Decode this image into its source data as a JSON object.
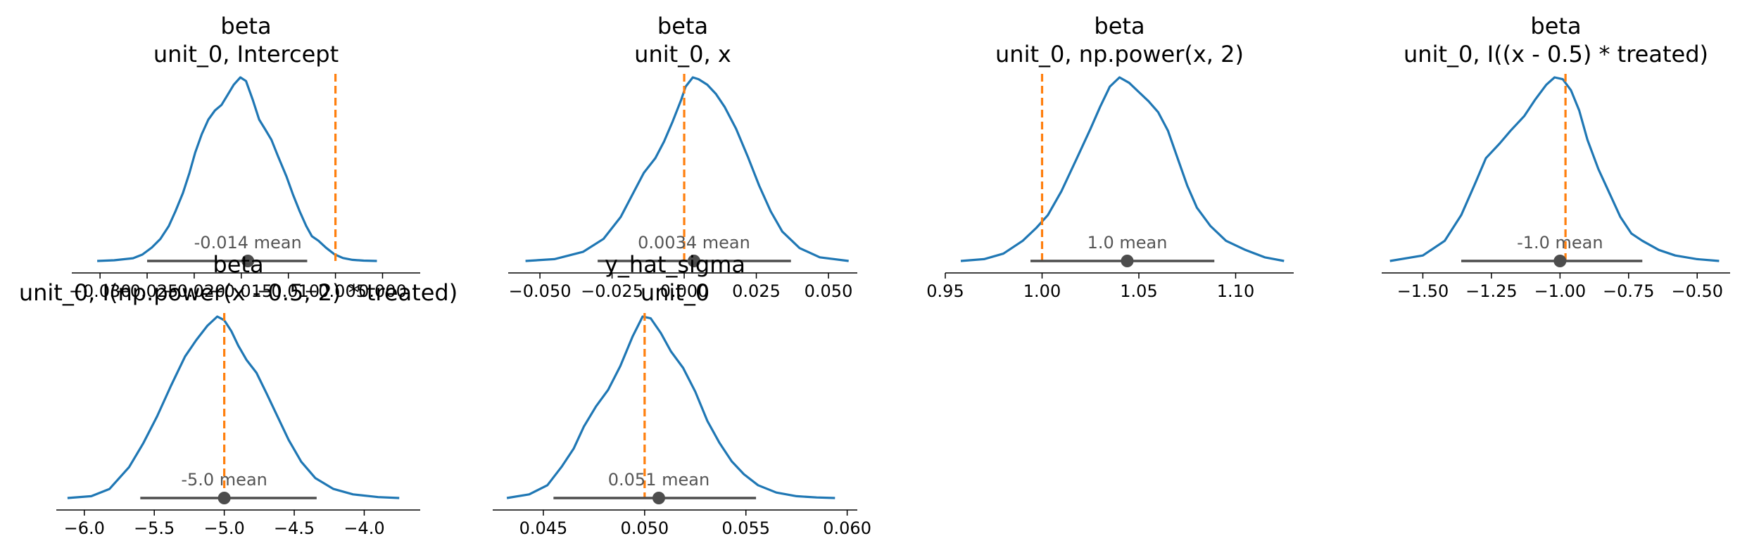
{
  "colors": {
    "density": "#1f77b4",
    "reference": "#ff7f0e",
    "hdi": "#4d4d4d",
    "mean_text": "#555555"
  },
  "chart_data": [
    {
      "type": "density",
      "title": [
        "beta",
        "unit_0, Intercept"
      ],
      "xlim": [
        -0.033,
        0.004
      ],
      "ticks": [
        -0.03,
        -0.025,
        -0.02,
        -0.015,
        -0.01,
        -0.005,
        0.0
      ],
      "tick_labels": [
        "−0.030",
        "−0.025",
        "−0.020",
        "−0.015",
        "−0.010",
        "−0.005",
        "0.000"
      ],
      "mean": -0.0143,
      "mean_label": "-0.014 mean",
      "hdi": [
        -0.025,
        -0.008
      ],
      "ref": -0.005,
      "density": {
        "x": [
          -0.0303,
          -0.0285,
          -0.0265,
          -0.0255,
          -0.0245,
          -0.0236,
          -0.0227,
          -0.022,
          -0.0212,
          -0.0205,
          -0.0199,
          -0.0192,
          -0.0185,
          -0.0178,
          -0.0171,
          -0.0165,
          -0.0158,
          -0.0151,
          -0.0145,
          -0.0138,
          -0.0131,
          -0.0125,
          -0.0118,
          -0.0111,
          -0.0102,
          -0.0095,
          -0.0088,
          -0.0081,
          -0.0075,
          -0.0068,
          -0.006,
          -0.0051,
          -0.0042,
          -0.0032,
          -0.002,
          -0.0006
        ],
        "y": [
          0.0,
          0.004,
          0.015,
          0.035,
          0.073,
          0.12,
          0.19,
          0.27,
          0.37,
          0.48,
          0.59,
          0.69,
          0.77,
          0.82,
          0.85,
          0.9,
          0.96,
          1.0,
          0.98,
          0.88,
          0.77,
          0.72,
          0.66,
          0.57,
          0.46,
          0.36,
          0.27,
          0.19,
          0.135,
          0.11,
          0.072,
          0.036,
          0.016,
          0.006,
          0.002,
          0.0
        ]
      }
    },
    {
      "type": "density",
      "title": [
        "beta",
        "unit_0, x"
      ],
      "xlim": [
        -0.061,
        0.06
      ],
      "ticks": [
        -0.05,
        -0.025,
        0.0,
        0.025,
        0.05
      ],
      "tick_labels": [
        "−0.050",
        "−0.025",
        "0.000",
        "0.025",
        "0.050"
      ],
      "mean": 0.0034,
      "mean_label": "0.0034 mean",
      "hdi": [
        -0.03,
        0.037
      ],
      "ref": 0.0,
      "density": {
        "x": [
          -0.055,
          -0.045,
          -0.035,
          -0.028,
          -0.022,
          -0.018,
          -0.014,
          -0.01,
          -0.007,
          -0.004,
          -0.001,
          0.0005,
          0.003,
          0.005,
          0.008,
          0.011,
          0.014,
          0.018,
          0.022,
          0.026,
          0.03,
          0.034,
          0.04,
          0.047,
          0.057
        ],
        "y": [
          0.0,
          0.01,
          0.05,
          0.12,
          0.24,
          0.36,
          0.48,
          0.56,
          0.65,
          0.76,
          0.88,
          0.95,
          1.0,
          0.99,
          0.96,
          0.91,
          0.84,
          0.72,
          0.57,
          0.41,
          0.27,
          0.16,
          0.07,
          0.02,
          0.0
        ]
      }
    },
    {
      "type": "density",
      "title": [
        "beta",
        "unit_0, np.power(x, 2)"
      ],
      "xlim": [
        0.95,
        1.13
      ],
      "ticks": [
        0.95,
        1.0,
        1.05,
        1.1
      ],
      "tick_labels": [
        "0.95",
        "1.00",
        "1.05",
        "1.10"
      ],
      "mean": 1.044,
      "mean_label": "1.0 mean",
      "hdi": [
        0.994,
        1.089
      ],
      "ref": 1.0,
      "density": {
        "x": [
          0.958,
          0.97,
          0.98,
          0.99,
          0.997,
          1.003,
          1.01,
          1.018,
          1.025,
          1.03,
          1.035,
          1.04,
          1.045,
          1.05,
          1.055,
          1.06,
          1.065,
          1.07,
          1.075,
          1.08,
          1.087,
          1.095,
          1.105,
          1.115,
          1.125
        ],
        "y": [
          0.0,
          0.01,
          0.04,
          0.11,
          0.18,
          0.25,
          0.38,
          0.56,
          0.72,
          0.84,
          0.95,
          1.0,
          0.97,
          0.92,
          0.87,
          0.81,
          0.71,
          0.56,
          0.41,
          0.29,
          0.19,
          0.11,
          0.06,
          0.02,
          0.0
        ]
      }
    },
    {
      "type": "density",
      "title": [
        "beta",
        "unit_0, I((x - 0.5) * treated)"
      ],
      "xlim": [
        -1.65,
        -0.38
      ],
      "ticks": [
        -1.5,
        -1.25,
        -1.0,
        -0.75,
        -0.5
      ],
      "tick_labels": [
        "−1.50",
        "−1.25",
        "−1.00",
        "−0.75",
        "−0.50"
      ],
      "mean": -1.0,
      "mean_label": "-1.0 mean",
      "hdi": [
        -1.36,
        -0.7
      ],
      "ref": -0.98,
      "density": {
        "x": [
          -1.62,
          -1.5,
          -1.42,
          -1.36,
          -1.31,
          -1.27,
          -1.22,
          -1.18,
          -1.13,
          -1.09,
          -1.05,
          -1.02,
          -0.99,
          -0.96,
          -0.93,
          -0.9,
          -0.86,
          -0.82,
          -0.78,
          -0.74,
          -0.7,
          -0.64,
          -0.58,
          -0.5,
          -0.42
        ],
        "y": [
          0.0,
          0.03,
          0.11,
          0.25,
          0.42,
          0.56,
          0.64,
          0.71,
          0.79,
          0.88,
          0.96,
          1.0,
          0.99,
          0.93,
          0.82,
          0.66,
          0.5,
          0.37,
          0.24,
          0.15,
          0.11,
          0.06,
          0.03,
          0.01,
          0.0
        ]
      }
    },
    {
      "type": "density",
      "title": [
        "beta",
        "unit_0, I(np.power(x - 0.5, 2) * treated)"
      ],
      "xlim": [
        -6.2,
        -3.6
      ],
      "ticks": [
        -6.0,
        -5.5,
        -5.0,
        -4.5,
        -4.0
      ],
      "tick_labels": [
        "−6.0",
        "−5.5",
        "−5.0",
        "−4.5",
        "−4.0"
      ],
      "mean": -5.0,
      "mean_label": "-5.0 mean",
      "hdi": [
        -5.6,
        -4.34
      ],
      "ref": -5.0,
      "density": {
        "x": [
          -6.12,
          -5.95,
          -5.82,
          -5.68,
          -5.58,
          -5.48,
          -5.38,
          -5.28,
          -5.2,
          -5.12,
          -5.05,
          -5.0,
          -4.95,
          -4.9,
          -4.84,
          -4.77,
          -4.7,
          -4.62,
          -4.54,
          -4.45,
          -4.35,
          -4.22,
          -4.08,
          -3.9,
          -3.75
        ],
        "y": [
          0.0,
          0.01,
          0.05,
          0.17,
          0.3,
          0.45,
          0.62,
          0.78,
          0.87,
          0.95,
          1.0,
          0.98,
          0.92,
          0.84,
          0.76,
          0.69,
          0.58,
          0.45,
          0.32,
          0.2,
          0.11,
          0.05,
          0.02,
          0.005,
          0.0
        ]
      }
    },
    {
      "type": "density",
      "title": [
        "y_hat_sigma",
        "unit_0"
      ],
      "xlim": [
        0.0425,
        0.0605
      ],
      "ticks": [
        0.045,
        0.05,
        0.055,
        0.06
      ],
      "tick_labels": [
        "0.045",
        "0.050",
        "0.055",
        "0.060"
      ],
      "mean": 0.0507,
      "mean_label": "0.051 mean",
      "hdi": [
        0.0455,
        0.0555
      ],
      "ref": 0.05,
      "density": {
        "x": [
          0.0432,
          0.0443,
          0.0452,
          0.0459,
          0.0465,
          0.047,
          0.0476,
          0.0482,
          0.0488,
          0.0494,
          0.0499,
          0.0503,
          0.0508,
          0.0513,
          0.0519,
          0.0525,
          0.0531,
          0.0537,
          0.0543,
          0.0549,
          0.0556,
          0.0565,
          0.0575,
          0.0585,
          0.0594
        ],
        "y": [
          0.0,
          0.02,
          0.07,
          0.17,
          0.27,
          0.39,
          0.5,
          0.59,
          0.72,
          0.88,
          0.99,
          0.98,
          0.9,
          0.8,
          0.71,
          0.58,
          0.42,
          0.3,
          0.2,
          0.13,
          0.07,
          0.03,
          0.01,
          0.003,
          0.0
        ]
      }
    }
  ]
}
